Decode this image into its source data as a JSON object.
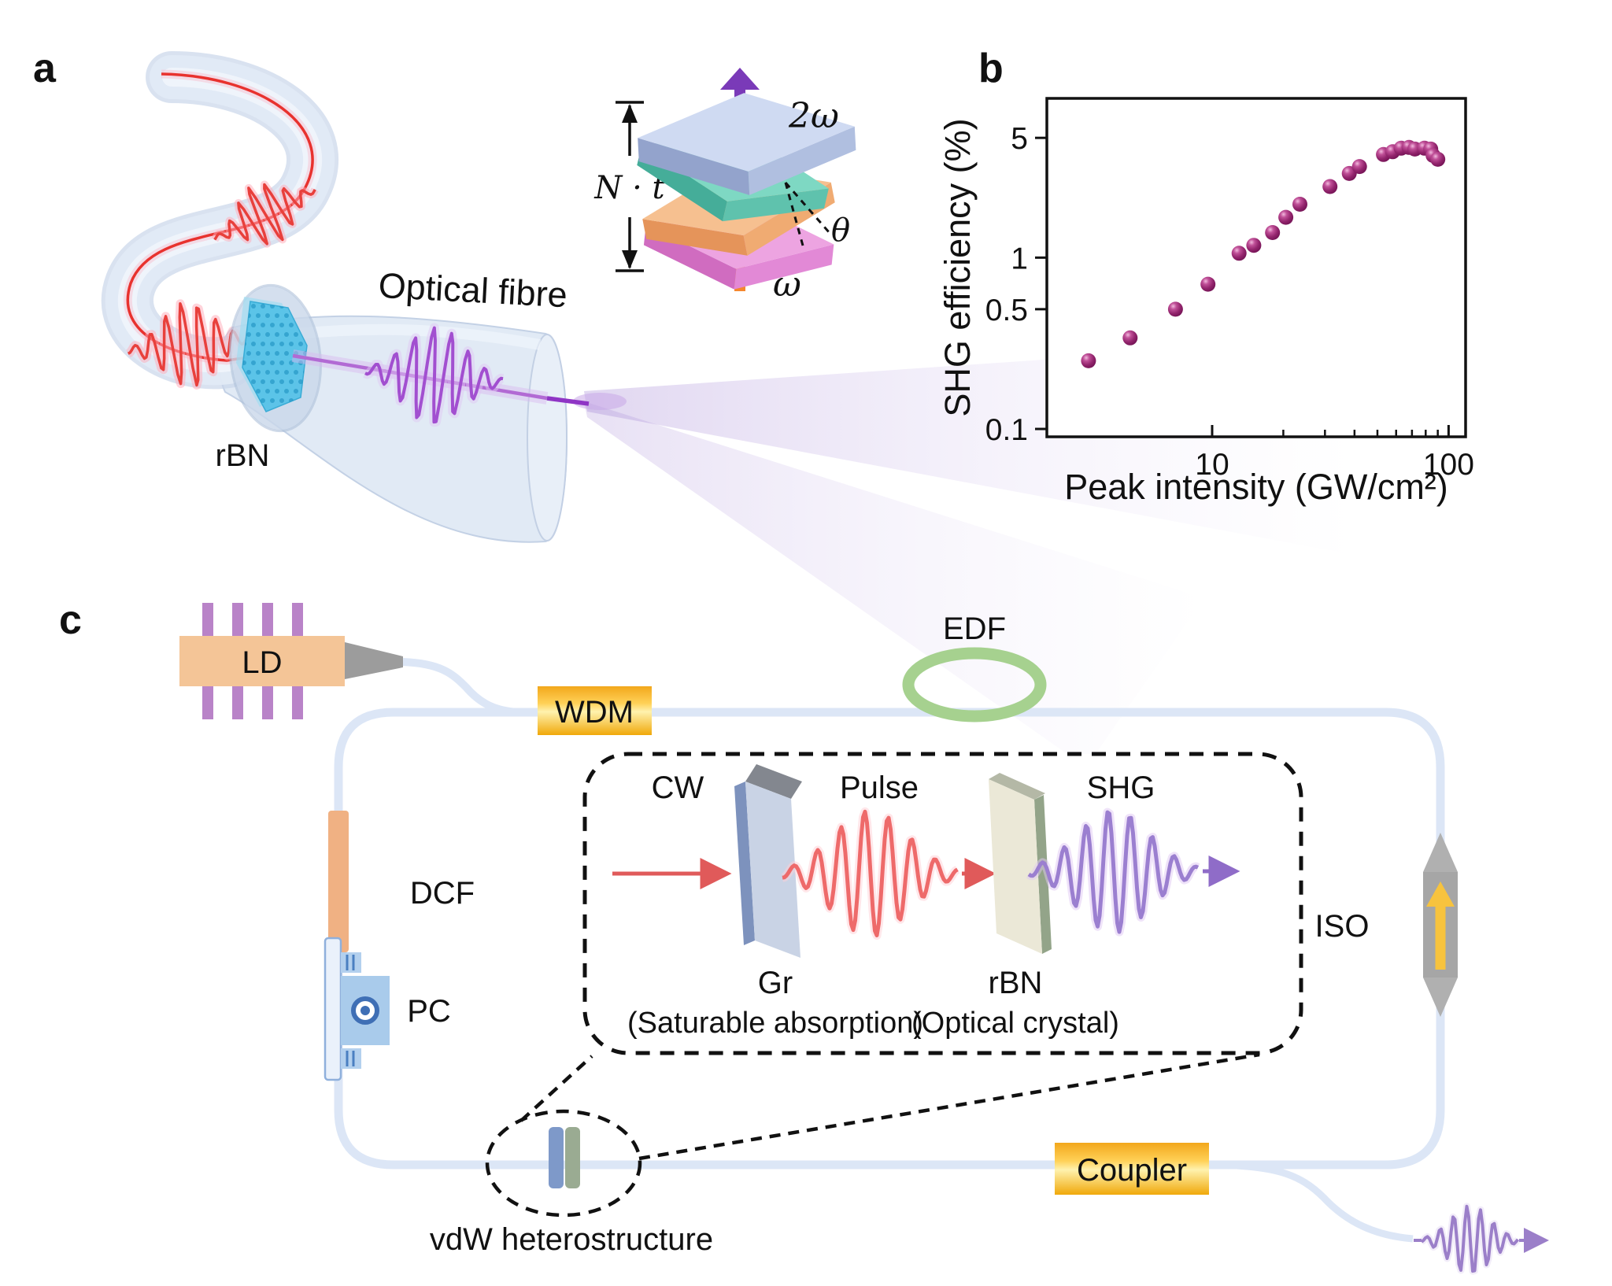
{
  "panel_a": {
    "label": "a",
    "optical_fibre_label": "Optical fibre",
    "rbn_label": "rBN",
    "inset": {
      "two_omega": "2ω",
      "omega": "ω",
      "thickness": "N · t",
      "theta": "θ"
    }
  },
  "panel_b": {
    "label": "b"
  },
  "panel_c": {
    "label": "c",
    "ld": "LD",
    "wdm": "WDM",
    "edf": "EDF",
    "dcf": "DCF",
    "pc": "PC",
    "iso": "ISO",
    "coupler": "Coupler",
    "vdw": "vdW heterostructure",
    "inset": {
      "cw": "CW",
      "pulse": "Pulse",
      "shg": "SHG",
      "gr": "Gr",
      "gr_desc": "(Saturable absorption)",
      "rbn": "rBN",
      "rbn_desc": "(Optical crystal)"
    }
  },
  "colors": {
    "fibre": "#dde7f6",
    "gold": "#f5a800",
    "red_pulse": "#e8403c",
    "red_glow": "#ffaab8",
    "purple_pulse": "#a24fd0",
    "inset_purple": "#9b7fd0",
    "purple_glow": "#e0c8f4",
    "output_purple": "#9b7fc9",
    "marker": "#8e2168",
    "edf_green": "#a6d18f",
    "ld_orange": "#f4c597",
    "pin_purple": "#b983c8",
    "dcf_orange": "#f0b183",
    "iso_gray": "#a6a6a6",
    "iso_arrow": "#f7c33e",
    "flake_cyan": "#54c2e8"
  },
  "chart_data": {
    "type": "scatter",
    "title": "",
    "xlabel": "Peak intensity (GW/cm²)",
    "ylabel": "SHG efficiency (%)",
    "x_scale": "log",
    "y_scale": "log",
    "xlim": [
      2,
      118
    ],
    "ylim": [
      0.09,
      8.5
    ],
    "x_ticks": [
      10,
      100
    ],
    "x_minor_ticks": [
      20,
      30,
      40,
      50,
      60,
      70,
      80,
      90
    ],
    "y_ticks": [
      0.1,
      0.5,
      1,
      5
    ],
    "grid": false,
    "legend": false,
    "marker_color": "#8e2168",
    "points": [
      [
        3.0,
        0.25
      ],
      [
        4.5,
        0.34
      ],
      [
        7.0,
        0.5
      ],
      [
        9.6,
        0.7
      ],
      [
        13,
        1.06
      ],
      [
        15,
        1.18
      ],
      [
        18,
        1.4
      ],
      [
        20.5,
        1.72
      ],
      [
        23.5,
        2.05
      ],
      [
        31.5,
        2.6
      ],
      [
        38,
        3.1
      ],
      [
        42,
        3.4
      ],
      [
        53,
        4.0
      ],
      [
        58,
        4.15
      ],
      [
        63,
        4.35
      ],
      [
        68,
        4.4
      ],
      [
        72,
        4.3
      ],
      [
        79,
        4.35
      ],
      [
        84,
        4.3
      ],
      [
        86,
        3.95
      ],
      [
        90,
        3.75
      ]
    ]
  }
}
